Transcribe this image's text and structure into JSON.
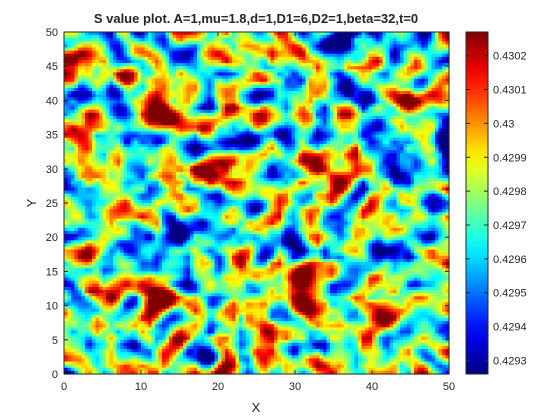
{
  "chart_data": {
    "type": "heatmap",
    "title": "S value plot. A=1,mu=1.8,d=1,D1=6,D2=1,beta=32,t=0",
    "xlabel": "X",
    "ylabel": "Y",
    "xlim": [
      0,
      50
    ],
    "ylim": [
      0,
      50
    ],
    "x_ticks": [
      "0",
      "10",
      "20",
      "30",
      "40",
      "50"
    ],
    "y_ticks": [
      "0",
      "5",
      "10",
      "15",
      "20",
      "25",
      "30",
      "35",
      "40",
      "45",
      "50"
    ],
    "colormap": "jet",
    "colorbar": {
      "min": 0.42926,
      "max": 0.43027,
      "ticks": [
        {
          "value": 0.4293,
          "label": "0.4293"
        },
        {
          "value": 0.4294,
          "label": "0.4294"
        },
        {
          "value": 0.4295,
          "label": "0.4295"
        },
        {
          "value": 0.4296,
          "label": "0.4296"
        },
        {
          "value": 0.4297,
          "label": "0.4297"
        },
        {
          "value": 0.4298,
          "label": "0.4298"
        },
        {
          "value": 0.4299,
          "label": "0.4299"
        },
        {
          "value": 0.43,
          "label": "0.43"
        },
        {
          "value": 0.4301,
          "label": "0.4301"
        },
        {
          "value": 0.4302,
          "label": "0.4302"
        }
      ]
    },
    "grid": false,
    "field": "random noise field (initial condition), values spanning 0.42926–0.43027"
  }
}
